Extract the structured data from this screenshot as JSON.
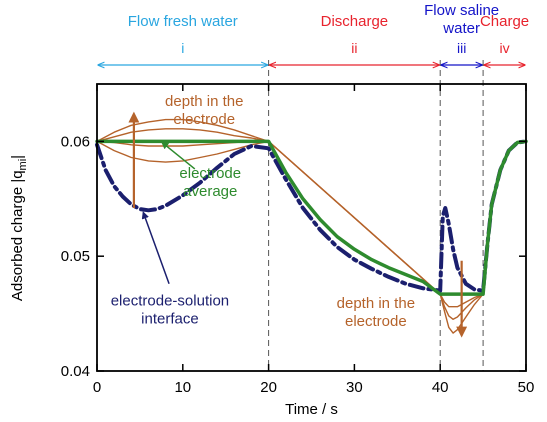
{
  "chart_data": {
    "type": "line",
    "xlabel": "Time / s",
    "ylabel": "Adsorbed charge |q",
    "ylabel_sub": "mi",
    "ylabel_end": "|",
    "xlim": [
      0,
      50
    ],
    "ylim": [
      0.04,
      0.065
    ],
    "xticks": [
      0,
      10,
      20,
      30,
      40,
      50
    ],
    "xtick_labels": [
      "0",
      "10",
      "20",
      "30",
      "40",
      "50"
    ],
    "yticks": [
      0.04,
      0.05,
      0.06
    ],
    "ytick_labels": [
      "0.04",
      "0.05",
      "0.06"
    ],
    "phase_boundaries": [
      20,
      40,
      45
    ],
    "phases": [
      {
        "name": "Flow fresh water",
        "numeral": "i",
        "x_start": 0,
        "x_end": 20,
        "color": "#2aa6e0"
      },
      {
        "name": "Discharge",
        "numeral": "ii",
        "x_start": 20,
        "x_end": 40,
        "color": "#e8232d"
      },
      {
        "name": "Flow saline water",
        "numeral": "iii",
        "x_start": 40,
        "x_end": 45,
        "color": "#1414c8"
      },
      {
        "name": "Charge",
        "numeral": "iv",
        "x_start": 45,
        "x_end": 50,
        "color": "#e8232d"
      }
    ],
    "series": [
      {
        "role": "electrode-solution interface",
        "color": "#1b1f6e",
        "style": "dash-dot",
        "x": [
          0,
          1,
          2,
          3,
          4,
          5,
          6,
          7,
          8,
          10,
          12,
          14,
          16,
          18,
          20,
          22,
          24,
          26,
          28,
          30,
          32,
          34,
          36,
          38,
          40,
          40.3,
          40.6,
          41,
          41.5,
          42,
          43,
          44,
          45,
          45.5,
          46,
          47,
          48,
          49,
          50
        ],
        "y": [
          0.0597,
          0.0575,
          0.0561,
          0.0552,
          0.0545,
          0.0541,
          0.054,
          0.0541,
          0.0544,
          0.0553,
          0.0564,
          0.0577,
          0.0589,
          0.0596,
          0.0594,
          0.0567,
          0.0542,
          0.0523,
          0.0508,
          0.0497,
          0.0489,
          0.0482,
          0.0476,
          0.0472,
          0.047,
          0.0535,
          0.0542,
          0.0528,
          0.0506,
          0.049,
          0.0476,
          0.0471,
          0.047,
          0.051,
          0.0545,
          0.0575,
          0.0592,
          0.0599,
          0.06
        ]
      },
      {
        "role": "electrode average",
        "color": "#2e8b2e",
        "style": "solid",
        "x": [
          0,
          20,
          22,
          24,
          26,
          28,
          30,
          32,
          34,
          36,
          38,
          40,
          45,
          45.5,
          46,
          47,
          48,
          49,
          50
        ],
        "y": [
          0.06,
          0.06,
          0.0573,
          0.055,
          0.0532,
          0.0517,
          0.0506,
          0.0497,
          0.049,
          0.0484,
          0.0478,
          0.0467,
          0.0467,
          0.051,
          0.0545,
          0.0575,
          0.0592,
          0.0599,
          0.06
        ]
      },
      {
        "role": "depth in the electrode 1",
        "color": "#b5632b",
        "style": "solid",
        "x": [
          0,
          2,
          4,
          6,
          8,
          10,
          12,
          14,
          16,
          18,
          20,
          40,
          40.5,
          41,
          41.5,
          42,
          43,
          44,
          45
        ],
        "y": [
          0.06,
          0.0608,
          0.0614,
          0.0617,
          0.0619,
          0.0619,
          0.0617,
          0.0614,
          0.061,
          0.0605,
          0.06,
          0.0467,
          0.0452,
          0.0438,
          0.0433,
          0.0436,
          0.0447,
          0.0458,
          0.0467
        ]
      },
      {
        "role": "depth in the electrode 2",
        "color": "#b5632b",
        "style": "solid",
        "x": [
          0,
          2,
          4,
          6,
          8,
          10,
          12,
          14,
          16,
          18,
          20,
          40,
          40.5,
          41,
          41.5,
          42,
          43,
          44,
          45
        ],
        "y": [
          0.06,
          0.0604,
          0.0608,
          0.061,
          0.0611,
          0.0611,
          0.061,
          0.0608,
          0.0605,
          0.0603,
          0.06,
          0.0467,
          0.0456,
          0.0448,
          0.0445,
          0.0447,
          0.0455,
          0.0462,
          0.0467
        ]
      },
      {
        "role": "depth in the electrode 3",
        "color": "#b5632b",
        "style": "solid",
        "x": [
          0,
          2,
          4,
          6,
          8,
          10,
          12,
          14,
          16,
          18,
          20,
          40,
          40.5,
          41,
          42,
          43,
          44,
          45
        ],
        "y": [
          0.06,
          0.0599,
          0.0597,
          0.0596,
          0.0596,
          0.0596,
          0.0597,
          0.0598,
          0.0599,
          0.06,
          0.06,
          0.0467,
          0.046,
          0.0456,
          0.0456,
          0.046,
          0.0464,
          0.0467
        ]
      },
      {
        "role": "depth in the electrode 4",
        "color": "#b5632b",
        "style": "solid",
        "x": [
          0,
          2,
          4,
          6,
          8,
          10,
          12,
          14,
          16,
          18,
          20
        ],
        "y": [
          0.06,
          0.0592,
          0.0586,
          0.0583,
          0.0582,
          0.0583,
          0.0586,
          0.0589,
          0.0593,
          0.0597,
          0.06
        ]
      }
    ],
    "annotations": [
      {
        "id": "depth-top",
        "lines": [
          "depth in the",
          "electrode"
        ],
        "color": "#b5632b",
        "x": 12.5,
        "y": 0.0631
      },
      {
        "id": "electrode-average",
        "lines": [
          "electrode",
          "average"
        ],
        "color": "#2e8b2e",
        "x": 13.2,
        "y": 0.0568
      },
      {
        "id": "interface",
        "lines": [
          "electrode-solution",
          "interface"
        ],
        "color": "#1b1f6e",
        "x": 8.5,
        "y": 0.0457
      },
      {
        "id": "depth-bottom",
        "lines": [
          "depth in the",
          "electrode"
        ],
        "color": "#b5632b",
        "x": 32.5,
        "y": 0.0455
      }
    ],
    "arrows": [
      {
        "id": "arrow-up-depth",
        "color": "#b5632b",
        "from": [
          4.3,
          0.0542
        ],
        "to": [
          4.3,
          0.0624
        ]
      },
      {
        "id": "arrow-down-depth",
        "color": "#b5632b",
        "from": [
          42.5,
          0.0496
        ],
        "to": [
          42.5,
          0.0431
        ]
      },
      {
        "id": "pointer-average",
        "color": "#2e8b2e",
        "from": [
          11.4,
          0.0576
        ],
        "to": [
          7.6,
          0.0599
        ]
      },
      {
        "id": "pointer-interface",
        "color": "#1b1f6e",
        "from": [
          8.4,
          0.0476
        ],
        "to": [
          5.4,
          0.0538
        ]
      }
    ]
  }
}
